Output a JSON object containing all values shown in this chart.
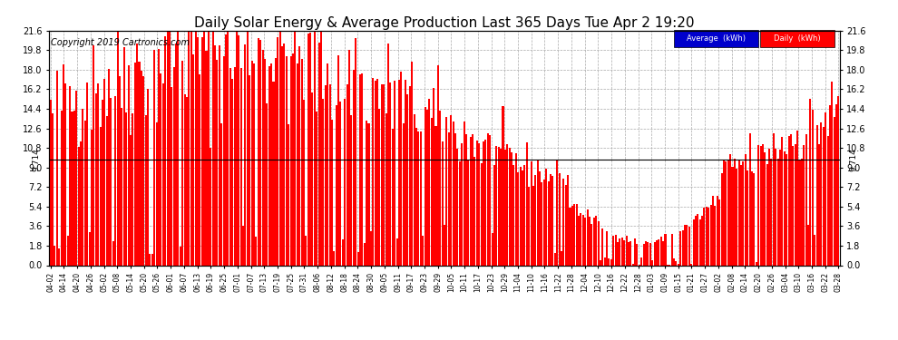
{
  "title": "Daily Solar Energy & Average Production Last 365 Days Tue Apr 2 19:20",
  "copyright": "Copyright 2019 Cartronics.com",
  "average_value": 9.714,
  "ymax": 21.6,
  "ymin": 0.0,
  "yticks": [
    0.0,
    1.8,
    3.6,
    5.4,
    7.2,
    9.0,
    10.8,
    12.6,
    14.4,
    16.2,
    18.0,
    19.8,
    21.6
  ],
  "bar_color": "#FF0000",
  "average_line_color": "#000000",
  "background_color": "#FFFFFF",
  "grid_color": "#AAAAAA",
  "legend_avg_bg": "#0000CC",
  "legend_daily_bg": "#FF0000",
  "legend_text_color": "#FFFFFF",
  "title_fontsize": 11,
  "copyright_fontsize": 7,
  "avg_label_fontsize": 6.5,
  "xtick_fontsize": 5.5,
  "ytick_fontsize": 7,
  "x_tick_labels": [
    "04-02",
    "04-14",
    "04-20",
    "04-26",
    "05-02",
    "05-08",
    "05-14",
    "05-20",
    "05-26",
    "06-01",
    "06-07",
    "06-13",
    "06-19",
    "06-25",
    "07-01",
    "07-07",
    "07-13",
    "07-19",
    "07-25",
    "07-31",
    "08-06",
    "08-12",
    "08-18",
    "08-24",
    "08-30",
    "09-05",
    "09-11",
    "09-17",
    "09-23",
    "09-29",
    "10-05",
    "10-11",
    "10-17",
    "10-23",
    "10-29",
    "11-04",
    "11-10",
    "11-16",
    "11-22",
    "11-28",
    "12-04",
    "12-10",
    "12-16",
    "12-22",
    "12-28",
    "01-03",
    "01-09",
    "01-15",
    "01-21",
    "01-27",
    "02-02",
    "02-08",
    "02-14",
    "02-20",
    "02-26",
    "03-04",
    "03-10",
    "03-16",
    "03-22",
    "03-28"
  ],
  "num_bars": 365,
  "seed": 42
}
